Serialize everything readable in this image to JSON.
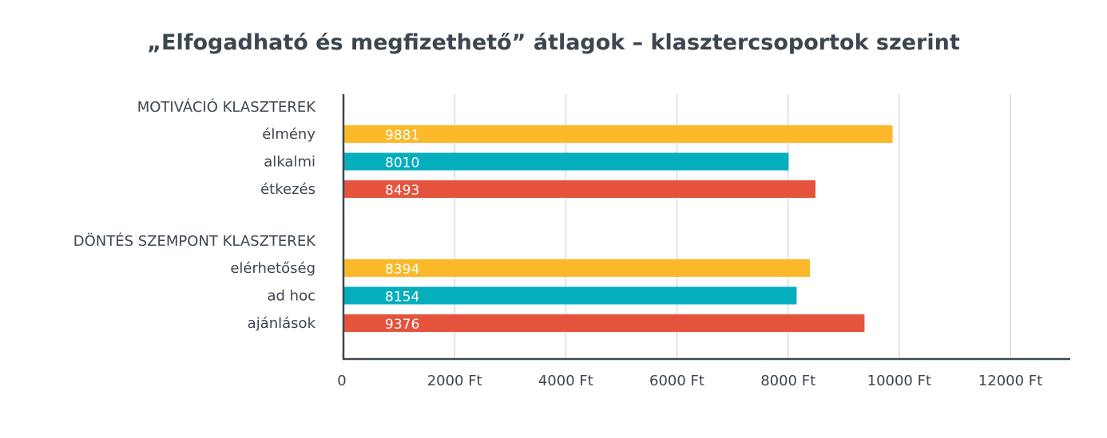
{
  "chart_data": {
    "type": "bar",
    "orientation": "horizontal",
    "title": "„Elfogadható és megfizethető” átlagok – klasztercsoportok szerint",
    "xlabel": "",
    "ylabel": "",
    "xlim": [
      0,
      13000
    ],
    "grid": true,
    "x_ticks": [
      {
        "value": 0,
        "label": "0"
      },
      {
        "value": 2000,
        "label": "2000 Ft"
      },
      {
        "value": 4000,
        "label": "4000 Ft"
      },
      {
        "value": 6000,
        "label": "6000 Ft"
      },
      {
        "value": 8000,
        "label": "8000 Ft"
      },
      {
        "value": 10000,
        "label": "10000 Ft"
      },
      {
        "value": 12000,
        "label": "12000 Ft"
      }
    ],
    "groups": [
      {
        "label": "MOTIVÁCIÓ KLASZTEREK",
        "bars": [
          {
            "category": "élmény",
            "value": 9881,
            "color": "#FBB829"
          },
          {
            "category": "alkalmi",
            "value": 8010,
            "color": "#05AEBC"
          },
          {
            "category": "étkezés",
            "value": 8493,
            "color": "#E5533D"
          }
        ]
      },
      {
        "label": "DÖNTÉS SZEMPONT KLASZTEREK",
        "bars": [
          {
            "category": "elérhetőség",
            "value": 8394,
            "color": "#FBB829"
          },
          {
            "category": "ad hoc",
            "value": 8154,
            "color": "#05AEBC"
          },
          {
            "category": "ajánlások",
            "value": 9376,
            "color": "#E5533D"
          }
        ]
      }
    ]
  }
}
